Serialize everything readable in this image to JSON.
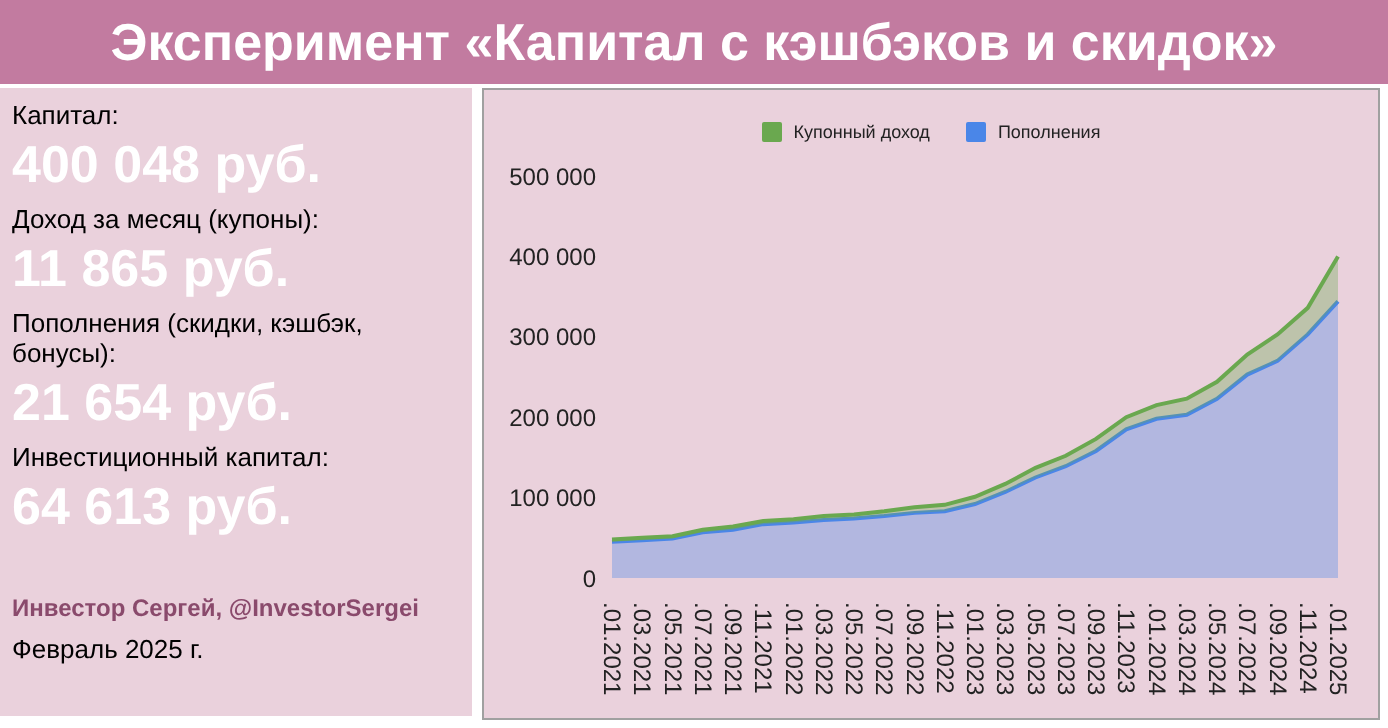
{
  "chart_data": [
    {
      "type": "other",
      "title": "Эксперимент «Капитал с кэшбэков и скидок»",
      "annotations": [
        "Капитал:",
        "400 048 руб.",
        "Доход за месяц (купоны):",
        "11 865 руб.",
        "Пополнения (скидки, кэшбэк, бонусы):",
        "21 654 руб.",
        "Инвестиционный капитал:",
        "64 613 руб.",
        "Инвестор Сергей, @InvestorSergei",
        "Февраль 2025 г."
      ]
    },
    {
      "type": "area",
      "stacked": true,
      "legend": "top",
      "categories": [
        ".01.2021",
        ".03.2021",
        ".05.2021",
        ".07.2021",
        ".09.2021",
        ".11.2021",
        ".01.2022",
        ".03.2022",
        ".05.2022",
        ".07.2022",
        ".09.2022",
        ".11.2022",
        ".01.2023",
        ".03.2023",
        ".05.2023",
        ".07.2023",
        ".09.2023",
        ".11.2023",
        ".01.2024",
        ".03.2024",
        ".05.2024",
        ".07.2024",
        ".09.2024",
        ".11.2024",
        ".01.2025"
      ],
      "ylim": [
        0,
        500000
      ],
      "yticks": [
        {
          "value": 0,
          "label": "0"
        },
        {
          "value": 100000,
          "label": "100 000"
        },
        {
          "value": 200000,
          "label": "200 000"
        },
        {
          "value": 300000,
          "label": "300 000"
        },
        {
          "value": 400000,
          "label": "400 000"
        },
        {
          "value": 500000,
          "label": "500 000"
        }
      ],
      "series": [
        {
          "name": "Пополнения",
          "color": "#4a86e8",
          "values": [
            45000,
            47000,
            49000,
            57000,
            60000,
            67000,
            69000,
            72000,
            74000,
            77000,
            81000,
            83000,
            92000,
            107000,
            125000,
            139000,
            158000,
            185000,
            198000,
            203000,
            223000,
            253000,
            270000,
            303000,
            344000
          ]
        },
        {
          "name": "Купонный доход",
          "color": "#6aa84f",
          "values": [
            3000,
            3000,
            3000,
            3000,
            4000,
            4000,
            4000,
            5000,
            5000,
            6000,
            7000,
            8000,
            9000,
            10000,
            12000,
            13000,
            15000,
            15000,
            17000,
            20000,
            21000,
            25000,
            33000,
            33000,
            56000
          ]
        }
      ]
    }
  ]
}
